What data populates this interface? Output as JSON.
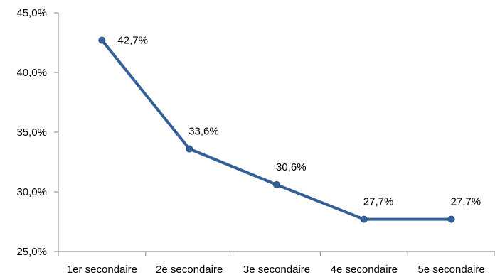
{
  "chart_data": {
    "type": "line",
    "title": "",
    "xlabel": "",
    "ylabel": "",
    "categories": [
      "1er secondaire",
      "2e secondaire",
      "3e secondaire",
      "4e secondaire",
      "5e secondaire"
    ],
    "series": [
      {
        "values": [
          42.7,
          33.6,
          30.6,
          27.7,
          27.7
        ],
        "labels": [
          "42,7%",
          "33,6%",
          "30,6%",
          "27,7%",
          "27,7%"
        ],
        "color": "#34609A"
      }
    ],
    "ylim": [
      25,
      45
    ],
    "yticks": [
      25,
      30,
      35,
      40,
      45
    ],
    "ytick_labels": [
      "25,0%",
      "30,0%",
      "35,0%",
      "40,0%",
      "45,0%"
    ],
    "grid": false,
    "legend": "none"
  }
}
